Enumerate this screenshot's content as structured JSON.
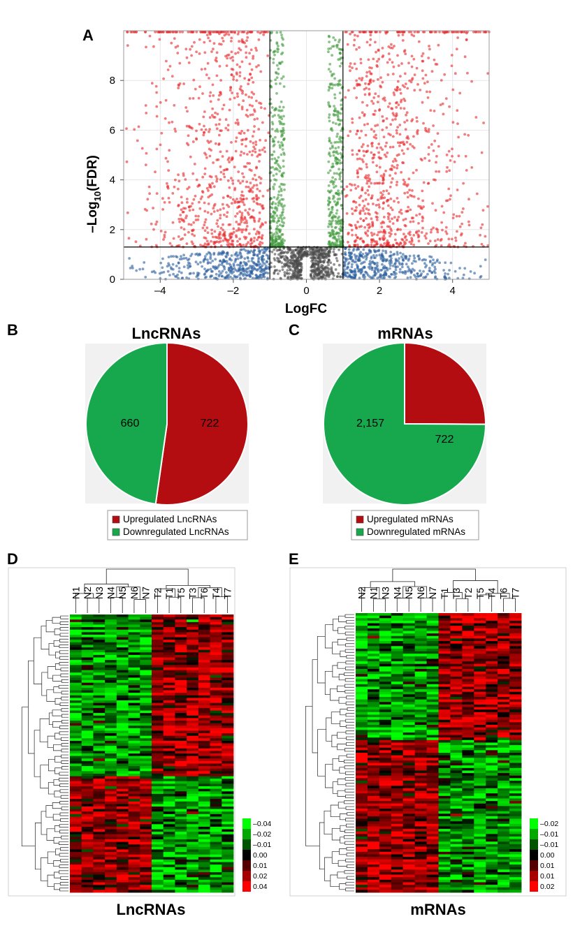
{
  "panels": {
    "A": {
      "label": "A"
    },
    "B": {
      "label": "B"
    },
    "C": {
      "label": "C"
    },
    "D": {
      "label": "D"
    },
    "E": {
      "label": "E"
    }
  },
  "chart_data": [
    {
      "id": "volcano",
      "type": "scatter",
      "title": "",
      "xlabel": "LogFC",
      "ylabel_main": "–Log",
      "ylabel_sub": "10",
      "ylabel_tail": "(FDR)",
      "xlim": [
        -5,
        5
      ],
      "ylim": [
        0,
        10
      ],
      "xticks": [
        -4,
        -2,
        0,
        2,
        4
      ],
      "xtick_labels": [
        "–4",
        "–2",
        "0",
        "2",
        "4"
      ],
      "yticks": [
        0,
        2,
        4,
        6,
        8
      ],
      "ytick_labels": [
        "0",
        "2",
        "4",
        "6",
        "8"
      ],
      "fc_threshold": 1,
      "fdr_threshold_log10": 1.3,
      "grid": true,
      "colors": {
        "significant": "#e8262a",
        "fdr_only": "#3f9a3a",
        "fc_only": "#2c5f9e",
        "not_significant": "#4a4a4a"
      }
    },
    {
      "id": "pie-lnc",
      "type": "pie",
      "title": "LncRNAs",
      "slices": [
        {
          "name": "Upregulated LncRNAs",
          "value": 722,
          "label": "722",
          "color": "#b30d12"
        },
        {
          "name": "Downregulated LncRNAs",
          "value": 660,
          "label": "660",
          "color": "#17a84e"
        }
      ],
      "legend": [
        "Upregulated LncRNAs",
        "Downregulated LncRNAs"
      ],
      "legend_position": "bottom"
    },
    {
      "id": "pie-mrna",
      "type": "pie",
      "title": "mRNAs",
      "slices": [
        {
          "name": "Upregulated mRNAs",
          "value": 722,
          "label": "722",
          "color": "#b30d12"
        },
        {
          "name": "Downregulated mRNAs",
          "value": 2157,
          "label": "2,157",
          "color": "#17a84e"
        }
      ],
      "legend": [
        "Upregulated mRNAs",
        "Downregulated mRNAs"
      ],
      "legend_position": "bottom"
    },
    {
      "id": "heat-lnc",
      "type": "heatmap",
      "title": "LncRNAs",
      "columns": [
        "N1",
        "N2",
        "N3",
        "N4",
        "N5",
        "N6",
        "N7",
        "T2",
        "T1",
        "T5",
        "T3",
        "T6",
        "T4",
        "T7"
      ],
      "normal_count": 7,
      "up_fraction": 0.58,
      "colorbar": [
        "–0.04",
        "–0.02",
        "–0.01",
        "0.00",
        "0.01",
        "0.02",
        "0.04"
      ],
      "colors": {
        "low": "#00ff00",
        "mid": "#000000",
        "high": "#ff0000"
      }
    },
    {
      "id": "heat-mrna",
      "type": "heatmap",
      "title": "mRNAs",
      "columns": [
        "N2",
        "N1",
        "N3",
        "N4",
        "N5",
        "N6",
        "N7",
        "T1",
        "T3",
        "T2",
        "T5",
        "T4",
        "T6",
        "T7"
      ],
      "normal_count": 7,
      "up_fraction": 0.45,
      "colorbar": [
        "–0.02",
        "–0.01",
        "–0.01",
        "0.00",
        "0.01",
        "0.01",
        "0.02"
      ],
      "colors": {
        "low": "#00ff00",
        "mid": "#000000",
        "high": "#ff0000"
      }
    }
  ]
}
